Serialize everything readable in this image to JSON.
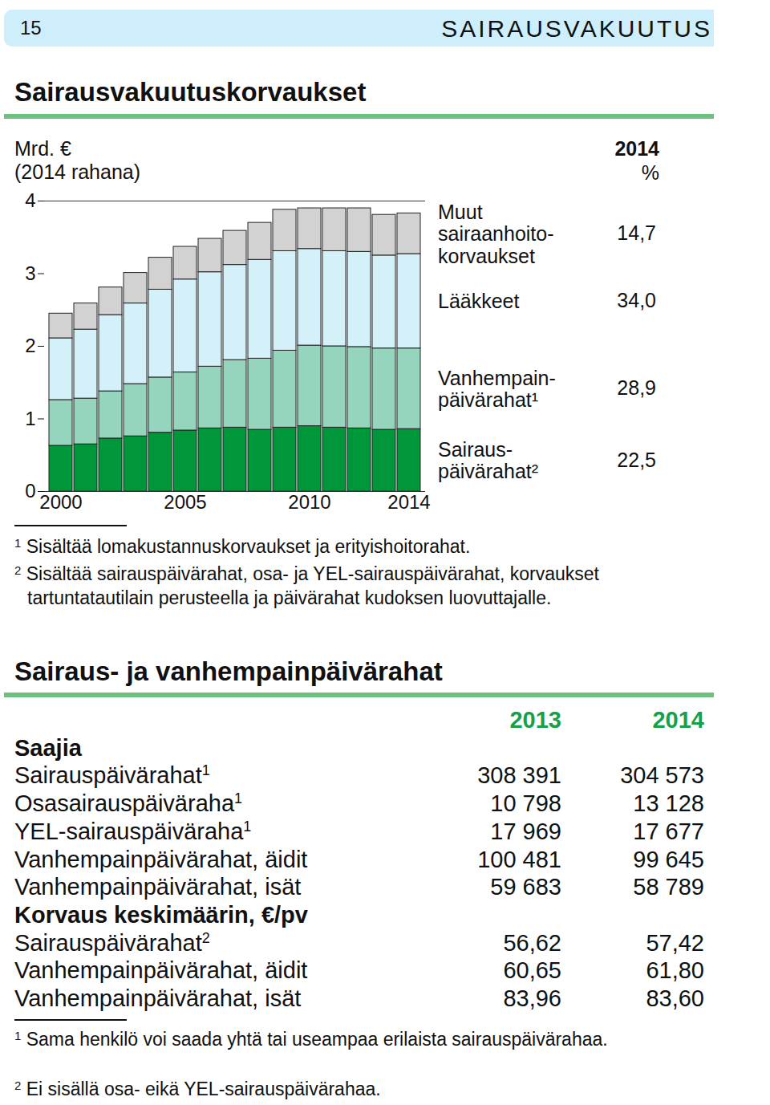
{
  "header": {
    "page": "15",
    "section": "SAIRAUSVAKUUTUS"
  },
  "chart_data": {
    "type": "bar",
    "stacked": true,
    "title": "Sairausvakuutuskorvaukset",
    "ylabel": "Mrd. €\n(2014 rahana)",
    "categories": [
      "2000",
      null,
      null,
      null,
      null,
      "2005",
      null,
      null,
      null,
      null,
      "2010",
      null,
      null,
      null,
      "2014"
    ],
    "ylim": [
      0,
      4
    ],
    "yticks": [
      0,
      1,
      2,
      3,
      4
    ],
    "grid": false,
    "share_header": [
      "2014",
      "%"
    ],
    "series": [
      {
        "name": "Sairaus-\npäivärahat²",
        "color": "#00973a",
        "share": 22.5,
        "share_label": "22,5",
        "values": [
          0.63,
          0.65,
          0.73,
          0.76,
          0.81,
          0.84,
          0.87,
          0.88,
          0.85,
          0.88,
          0.9,
          0.88,
          0.87,
          0.85,
          0.86
        ]
      },
      {
        "name": "Vanhempain-\npäivärahat¹",
        "color": "#96d5bd",
        "share": 28.9,
        "share_label": "28,9",
        "values": [
          0.63,
          0.63,
          0.65,
          0.72,
          0.76,
          0.8,
          0.85,
          0.93,
          0.98,
          1.06,
          1.11,
          1.12,
          1.12,
          1.12,
          1.11
        ]
      },
      {
        "name": "Lääkkeet",
        "color": "#d4f1fa",
        "share": 34.0,
        "share_label": "34,0",
        "values": [
          0.85,
          0.95,
          1.05,
          1.11,
          1.21,
          1.28,
          1.3,
          1.31,
          1.36,
          1.37,
          1.33,
          1.31,
          1.31,
          1.28,
          1.3
        ]
      },
      {
        "name": "Muut\nsairaanhoito-\nkorvaukset",
        "color": "#d2d2d2",
        "share": 14.7,
        "share_label": "14,7",
        "values": [
          0.34,
          0.36,
          0.38,
          0.42,
          0.44,
          0.45,
          0.46,
          0.47,
          0.51,
          0.57,
          0.56,
          0.59,
          0.6,
          0.56,
          0.56
        ]
      }
    ],
    "footnotes": [
      {
        "mark": "1",
        "text": "Sisältää lomakustannuskorvaukset ja erityishoitorahat."
      },
      {
        "mark": "2",
        "text": "Sisältää sairauspäivärahat, osa- ja YEL-sairauspäivärahat, korvaukset tartuntatautilain perusteella ja päivärahat kudoksen luovuttajalle."
      }
    ]
  },
  "table_section": {
    "title": "Sairaus- ja vanhempainpäivärahat",
    "columns": [
      "2013",
      "2014"
    ],
    "rows": [
      {
        "label": "Saajia",
        "group": true
      },
      {
        "label": "Sairauspäivärahat",
        "note": "1",
        "values": [
          "308 391",
          "304 573"
        ]
      },
      {
        "label": "Osasairauspäiväraha",
        "note": "1",
        "values": [
          "10 798",
          "13 128"
        ]
      },
      {
        "label": "YEL-sairauspäiväraha",
        "note": "1",
        "values": [
          "17 969",
          "17 677"
        ]
      },
      {
        "label": "Vanhempainpäivärahat, äidit",
        "values": [
          "100 481",
          "99 645"
        ]
      },
      {
        "label": "Vanhempainpäivärahat, isät",
        "values": [
          "59 683",
          "58 789"
        ]
      },
      {
        "label": "Korvaus keskimäärin, €/pv",
        "group": true
      },
      {
        "label": "Sairauspäivärahat",
        "note": "2",
        "values": [
          "56,62",
          "57,42"
        ]
      },
      {
        "label": "Vanhempainpäivärahat, äidit",
        "values": [
          "60,65",
          "61,80"
        ]
      },
      {
        "label": "Vanhempainpäivärahat, isät",
        "values": [
          "83,96",
          "83,60"
        ]
      }
    ],
    "footnotes": [
      {
        "mark": "1",
        "text": "Sama henkilö voi saada yhtä tai useampaa erilaista sairauspäivärahaa."
      },
      {
        "mark": "2",
        "text": "Ei sisällä osa- eikä YEL-sairauspäivärahaa."
      }
    ]
  }
}
